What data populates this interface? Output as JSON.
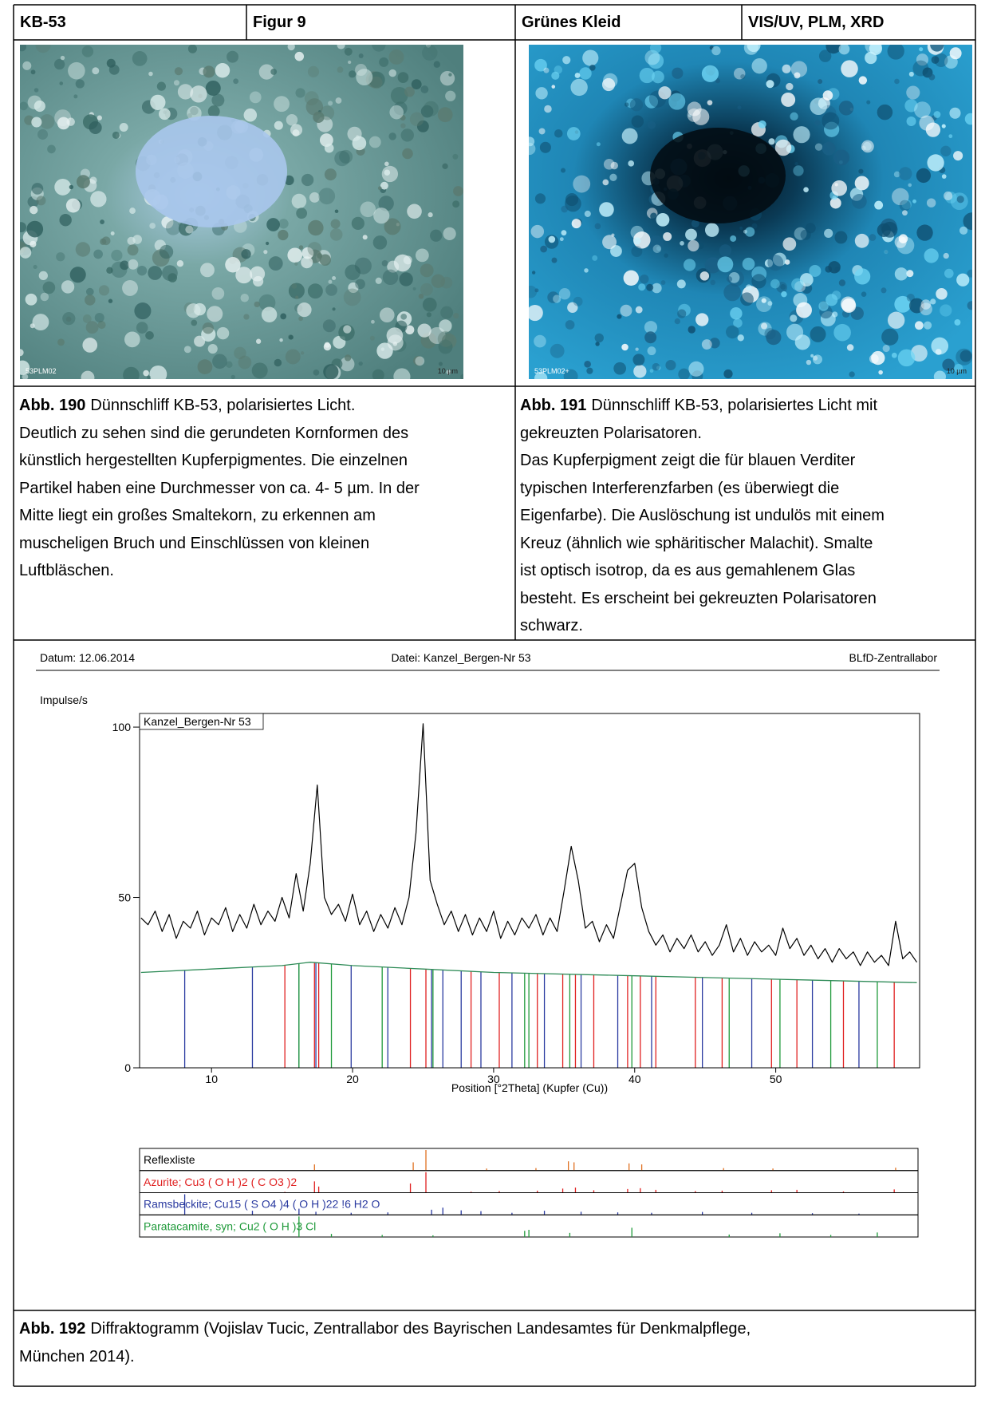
{
  "header": {
    "cells": [
      "KB-53",
      "Figur 9",
      "Grünes Kleid",
      "VIS/UV, PLM, XRD"
    ]
  },
  "images": [
    {
      "id_label": "53PLM02",
      "scale_label": "10 µm"
    },
    {
      "id_label": "53PLM02+",
      "scale_label": "10 µm"
    }
  ],
  "captions": [
    {
      "label": "Abb. 190",
      "lines": [
        "Dünnschliff KB-53, polarisiertes Licht.",
        "Deutlich zu sehen sind die gerundeten Kornformen des",
        "künstlich hergestellten Kupferpigmentes. Die einzelnen",
        "Partikel haben eine Durchmesser von ca. 4- 5 µm. In der",
        "Mitte liegt ein großes Smaltekorn, zu erkennen am",
        "muscheligen Bruch und Einschlüssen von kleinen",
        "Luftbläschen."
      ]
    },
    {
      "label": "Abb. 191",
      "lines": [
        "Dünnschliff KB-53, polarisiertes Licht mit",
        "gekreuzten Polarisatoren.",
        "Das Kupferpigment zeigt die für blauen Verditer",
        "typischen Interferenzfarben (es überwiegt die",
        "Eigenfarbe). Die Auslöschung ist undulös mit einem",
        "Kreuz (ähnlich wie sphäritischer Malachit). Smalte",
        "ist optisch isotrop, da es aus gemahlenem Glas",
        "besteht. Es erscheint bei gekreuzten Polarisatoren",
        "schwarz."
      ]
    }
  ],
  "chart_data": {
    "type": "line",
    "header_left": "Datum: 12.06.2014",
    "header_center": "Datei: Kanzel_Bergen-Nr 53",
    "header_right": "BLfD-Zentrallabor",
    "ylabel": "Impulse/s",
    "xlabel": "Position [°2Theta] (Kupfer (Cu))",
    "xlim": [
      4.9,
      60.2
    ],
    "ylim": [
      0,
      104
    ],
    "xticks": [
      10,
      20,
      30,
      40,
      50
    ],
    "yticks": [
      0,
      50,
      100
    ],
    "series": [
      {
        "name": "Kanzel_Bergen-Nr 53",
        "color": "#000000",
        "x": [
          5,
          5.5,
          6,
          6.5,
          7,
          7.5,
          8,
          8.5,
          9,
          9.5,
          10,
          10.5,
          11,
          11.5,
          12,
          12.5,
          13,
          13.5,
          14,
          14.5,
          15,
          15.5,
          16,
          16.5,
          17,
          17.5,
          18,
          18.5,
          19,
          19.5,
          20,
          20.5,
          21,
          21.5,
          22,
          22.5,
          23,
          23.5,
          24,
          24.5,
          25,
          25.5,
          26,
          26.5,
          27,
          27.5,
          28,
          28.5,
          29,
          29.5,
          30,
          30.5,
          31,
          31.5,
          32,
          32.5,
          33,
          33.5,
          34,
          34.5,
          35,
          35.5,
          36,
          36.5,
          37,
          37.5,
          38,
          38.5,
          39,
          39.5,
          40,
          40.5,
          41,
          41.5,
          42,
          42.5,
          43,
          43.5,
          44,
          44.5,
          45,
          45.5,
          46,
          46.5,
          47,
          47.5,
          48,
          48.5,
          49,
          49.5,
          50,
          50.5,
          51,
          51.5,
          52,
          52.5,
          53,
          53.5,
          54,
          54.5,
          55,
          55.5,
          56,
          56.5,
          57,
          57.5,
          58,
          58.5,
          59,
          59.5,
          60
        ],
        "values": [
          44,
          42,
          46,
          40,
          45,
          38,
          43,
          41,
          46,
          39,
          44,
          42,
          47,
          40,
          45,
          41,
          48,
          42,
          46,
          43,
          50,
          44,
          57,
          46,
          60,
          83,
          50,
          45,
          48,
          43,
          51,
          42,
          46,
          40,
          45,
          41,
          47,
          42,
          50,
          69,
          101,
          55,
          48,
          42,
          46,
          40,
          45,
          39,
          44,
          40,
          46,
          38,
          43,
          39,
          44,
          41,
          45,
          39,
          44,
          40,
          52,
          65,
          55,
          41,
          43,
          37,
          42,
          38,
          48,
          58,
          60,
          47,
          40,
          36,
          39,
          34,
          38,
          35,
          39,
          34,
          37,
          33,
          36,
          42,
          34,
          38,
          33,
          37,
          34,
          36,
          33,
          41,
          35,
          38,
          33,
          36,
          32,
          35,
          31,
          35,
          32,
          34,
          30,
          34,
          31,
          33,
          30,
          43,
          32,
          34,
          31
        ]
      }
    ],
    "background": {
      "color": "#2e8b57",
      "x": [
        5,
        10,
        15,
        17,
        20,
        25,
        30,
        40,
        50,
        60
      ],
      "values": [
        28,
        29,
        30,
        31,
        30,
        29,
        28,
        27,
        26,
        25
      ]
    },
    "peak_list": {
      "title": "Reflexliste",
      "color": "#e07020",
      "positions": [
        17.3,
        24.3,
        25.2,
        29.5,
        33.0,
        35.3,
        35.7,
        39.6,
        40.5,
        46.3,
        49.8,
        58.5
      ],
      "intensities": [
        30,
        40,
        100,
        10,
        12,
        45,
        40,
        35,
        30,
        12,
        10,
        14
      ]
    },
    "phases": [
      {
        "name": "Azurite; Cu3 ( O H )2 ( C O3 )2",
        "color": "#e02020",
        "positions": [
          15.2,
          17.3,
          17.6,
          24.1,
          25.2,
          28.4,
          30.4,
          33.1,
          34.9,
          35.8,
          37.1,
          39.5,
          40.4,
          41.5,
          44.3,
          46.2,
          49.7,
          51.5,
          54.8,
          58.4
        ],
        "intensities": [
          4,
          55,
          30,
          45,
          100,
          5,
          8,
          10,
          20,
          25,
          12,
          18,
          22,
          14,
          8,
          10,
          12,
          14,
          6,
          16
        ]
      },
      {
        "name": "Ramsbeckite; Cu15 ( S O4 )4 ( O H )22 !6 H2 O",
        "color": "#2a3aa0",
        "positions": [
          8.1,
          12.9,
          16.2,
          17.4,
          19.9,
          22.5,
          25.6,
          26.4,
          27.7,
          29.1,
          31.3,
          33.6,
          36.2,
          38.8,
          41.2,
          44.8,
          48.3,
          52.6,
          55.9
        ],
        "intensities": [
          100,
          20,
          30,
          15,
          10,
          12,
          25,
          35,
          22,
          18,
          10,
          20,
          15,
          12,
          10,
          14,
          10,
          8,
          6
        ]
      },
      {
        "name": "Paratacamite, syn; Cu2 ( O H )3 Cl",
        "color": "#1f9a3a",
        "positions": [
          16.2,
          18.5,
          22.1,
          25.7,
          32.2,
          32.5,
          35.4,
          39.8,
          46.7,
          50.3,
          53.9,
          57.2
        ],
        "intensities": [
          100,
          15,
          10,
          8,
          30,
          35,
          20,
          45,
          12,
          18,
          10,
          22
        ]
      }
    ]
  },
  "footer_caption": {
    "label": "Abb. 192",
    "lines": [
      "Diffraktogramm (Vojislav Tucic, Zentrallabor des Bayrischen Landesamtes für Denkmalpflege,",
      "München 2014)."
    ]
  }
}
